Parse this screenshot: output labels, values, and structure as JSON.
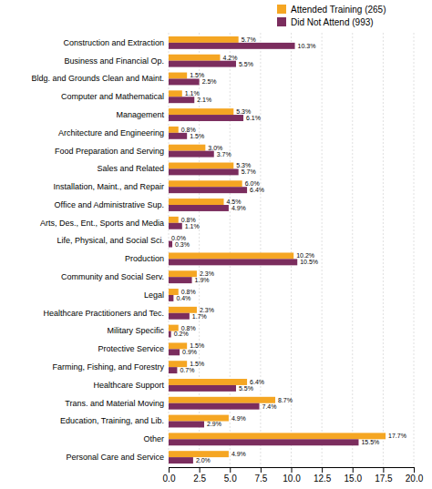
{
  "chart_data": {
    "type": "bar",
    "orientation": "horizontal",
    "categories": [
      "Construction and Extraction",
      "Business and Financial Op.",
      "Bldg. and Grounds Clean and Maint.",
      "Computer and Mathematical",
      "Management",
      "Architecture and Engineering",
      "Food Preparation and Serving",
      "Sales and Related",
      "Installation, Maint., and Repair",
      "Office and Administrative Sup.",
      "Arts, Des., Ent., Sports and Media",
      "Life, Physical, and Social Sci.",
      "Production",
      "Community and Social Serv.",
      "Legal",
      "Healthcare Practitioners and Tec.",
      "Military Specific",
      "Protective Service",
      "Farming, Fishing, and Forestry",
      "Healthcare Support",
      "Trans. and Material Moving",
      "Education, Training, and Lib.",
      "Other",
      "Personal Care and Service"
    ],
    "series": [
      {
        "name": "Attended Training (265)",
        "color": "#F5A623",
        "values": [
          5.7,
          4.2,
          1.5,
          1.1,
          5.3,
          0.8,
          3.0,
          5.3,
          6.0,
          4.5,
          0.8,
          0.0,
          10.2,
          2.3,
          0.8,
          2.3,
          0.8,
          1.5,
          1.5,
          6.4,
          8.7,
          4.9,
          17.7,
          4.9
        ],
        "value_labels": [
          "5.7%",
          "4.2%",
          "1.5%",
          "1.1%",
          "5.3%",
          "0.8%",
          "3.0%",
          "5.3%",
          "6.0%",
          "4.5%",
          "0.8%",
          "0.0%",
          "10.2%",
          "2.3%",
          "0.8%",
          "2.3%",
          "0.8%",
          "1.5%",
          "1.5%",
          "6.4%",
          "8.7%",
          "4.9%",
          "17.7%",
          "4.9%"
        ]
      },
      {
        "name": "Did Not Attend (993)",
        "color": "#7B2D5E",
        "values": [
          10.3,
          5.5,
          2.5,
          2.1,
          6.1,
          1.5,
          3.7,
          5.7,
          6.4,
          4.9,
          1.1,
          0.3,
          10.5,
          1.9,
          0.4,
          1.7,
          0.2,
          0.9,
          0.7,
          5.5,
          7.4,
          2.9,
          15.5,
          2.0
        ],
        "value_labels": [
          "10.3%",
          "5.5%",
          "2.5%",
          "2.1%",
          "6.1%",
          "1.5%",
          "3.7%",
          "5.7%",
          "6.4%",
          "4.9%",
          "1.1%",
          "0.3%",
          "10.5%",
          "1.9%",
          "0.4%",
          "1.7%",
          "0.2%",
          "0.9%",
          "0.7%",
          "5.5%",
          "7.4%",
          "2.9%",
          "15.5%",
          "2.0%"
        ]
      }
    ],
    "xlim": [
      0,
      20
    ],
    "xticks": [
      {
        "value": 0,
        "label": "0.0"
      },
      {
        "value": 2.5,
        "label": "2.5"
      },
      {
        "value": 5,
        "label": "5.0"
      },
      {
        "value": 7.5,
        "label": "7.5"
      },
      {
        "value": 10,
        "label": "10.0"
      },
      {
        "value": 12.5,
        "label": "12.5"
      },
      {
        "value": 15,
        "label": "15.0"
      },
      {
        "value": 17.5,
        "label": "17.5"
      },
      {
        "value": 20,
        "label": "20.0"
      }
    ],
    "grid": true,
    "legend": "upper right",
    "data_labels": true
  }
}
